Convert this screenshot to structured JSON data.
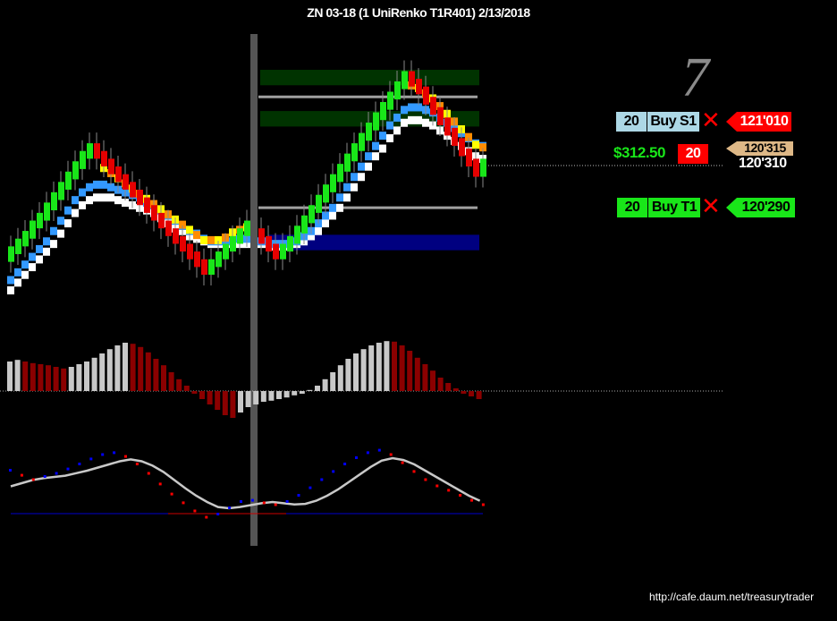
{
  "header": {
    "title": "ZN 03-18 (1 UniRenko T1R401)  2/13/2018"
  },
  "annotation": {
    "number": "7"
  },
  "trade_panel": {
    "stop": {
      "qty": "20",
      "label": "Buy S1",
      "price": "121'010"
    },
    "position": {
      "pnl": "$312.50",
      "qty": "20",
      "entry_price": "120'315",
      "current_price": "120'310"
    },
    "target": {
      "qty": "20",
      "label": "Buy T1",
      "price": "120'290"
    }
  },
  "footer": {
    "url": "http://cafe.daum.net/treasurytrader"
  },
  "colors": {
    "up_bar": "#19e619",
    "down_bar": "#e60000",
    "zone_green": "#003300",
    "zone_blue": "#000080",
    "macd_up": "#c8c8c8",
    "macd_down": "#8b0000",
    "stoch_line": "#c8c8c8",
    "dots_up": "#0000ff",
    "dots_down": "#ff0000"
  },
  "chart_data": [
    {
      "type": "candlestick",
      "closes": [
        0.5,
        0.53,
        0.56,
        0.6,
        0.63,
        0.67,
        0.71,
        0.75,
        0.79,
        0.83,
        0.87,
        0.9,
        0.87,
        0.84,
        0.81,
        0.78,
        0.75,
        0.72,
        0.69,
        0.66,
        0.63,
        0.6,
        0.57,
        0.54,
        0.51,
        0.48,
        0.45,
        0.42,
        0.45,
        0.48,
        0.51,
        0.54,
        0.57,
        0.6,
        0.57,
        0.54,
        0.51,
        0.48,
        0.51,
        0.54,
        0.58,
        0.62,
        0.66,
        0.7,
        0.74,
        0.78,
        0.82,
        0.86,
        0.9,
        0.94,
        0.98,
        1.02,
        1.06,
        1.1,
        1.14,
        1.18,
        1.15,
        1.12,
        1.08,
        1.04,
        1.0,
        0.96,
        0.92,
        0.88,
        0.84,
        0.8,
        0.84
      ],
      "ma_fast": [
        0.45,
        0.48,
        0.51,
        0.54,
        0.57,
        0.6,
        0.64,
        0.68,
        0.72,
        0.76,
        0.8,
        0.82,
        0.81,
        0.8,
        0.78,
        0.76,
        0.74,
        0.72,
        0.7,
        0.68,
        0.66,
        0.64,
        0.62,
        0.6,
        0.58,
        0.56,
        0.54,
        0.52,
        0.52,
        0.52,
        0.53,
        0.55,
        0.56,
        0.57,
        0.56,
        0.55,
        0.54,
        0.53,
        0.53,
        0.54,
        0.56,
        0.59,
        0.62,
        0.66,
        0.7,
        0.74,
        0.78,
        0.82,
        0.86,
        0.9,
        0.94,
        0.98,
        1.02,
        1.06,
        1.09,
        1.12,
        1.12,
        1.11,
        1.09,
        1.07,
        1.04,
        1.01,
        0.98,
        0.95,
        0.92,
        0.89,
        0.88
      ],
      "ma_slow": [
        0.4,
        0.43,
        0.46,
        0.49,
        0.52,
        0.55,
        0.59,
        0.63,
        0.67,
        0.71,
        0.74,
        0.76,
        0.77,
        0.77,
        0.76,
        0.75,
        0.74,
        0.73,
        0.72,
        0.7,
        0.69,
        0.67,
        0.65,
        0.63,
        0.61,
        0.59,
        0.58,
        0.56,
        0.55,
        0.55,
        0.55,
        0.55,
        0.56,
        0.56,
        0.56,
        0.55,
        0.55,
        0.54,
        0.54,
        0.54,
        0.55,
        0.57,
        0.59,
        0.62,
        0.65,
        0.68,
        0.72,
        0.76,
        0.8,
        0.84,
        0.88,
        0.92,
        0.96,
        1.0,
        1.03,
        1.06,
        1.07,
        1.07,
        1.06,
        1.05,
        1.03,
        1.01,
        0.99,
        0.97,
        0.95,
        0.93,
        0.92
      ],
      "ma_white": [
        0.36,
        0.39,
        0.42,
        0.45,
        0.48,
        0.51,
        0.54,
        0.58,
        0.62,
        0.66,
        0.69,
        0.71,
        0.72,
        0.72,
        0.72,
        0.71,
        0.7,
        0.69,
        0.68,
        0.67,
        0.66,
        0.64,
        0.62,
        0.6,
        0.59,
        0.57,
        0.56,
        0.55,
        0.54,
        0.54,
        0.54,
        0.54,
        0.54,
        0.54,
        0.54,
        0.54,
        0.54,
        0.53,
        0.53,
        0.53,
        0.54,
        0.55,
        0.57,
        0.59,
        0.62,
        0.65,
        0.68,
        0.72,
        0.76,
        0.8,
        0.84,
        0.88,
        0.91,
        0.95,
        0.98,
        1.01,
        1.02,
        1.02,
        1.01,
        1.0,
        0.98,
        0.96,
        0.94,
        0.92,
        0.9,
        0.88,
        0.87
      ],
      "zones": [
        {
          "from": 1.2,
          "to": 1.14,
          "color": "green"
        },
        {
          "from": 1.04,
          "to": 0.98,
          "color": "green"
        },
        {
          "from": 0.56,
          "to": 0.5,
          "color": "blue"
        }
      ],
      "levels": [
        1.095,
        0.665
      ]
    },
    {
      "type": "histogram",
      "values": [
        0.55,
        0.58,
        0.55,
        0.52,
        0.5,
        0.48,
        0.45,
        0.42,
        0.45,
        0.5,
        0.55,
        0.62,
        0.7,
        0.78,
        0.85,
        0.9,
        0.88,
        0.82,
        0.72,
        0.6,
        0.48,
        0.35,
        0.22,
        0.1,
        -0.05,
        -0.15,
        -0.25,
        -0.35,
        -0.45,
        -0.5,
        -0.4,
        -0.3,
        -0.25,
        -0.2,
        -0.18,
        -0.15,
        -0.12,
        -0.08,
        -0.05,
        0.02,
        0.1,
        0.22,
        0.35,
        0.48,
        0.6,
        0.7,
        0.78,
        0.85,
        0.9,
        0.93,
        0.92,
        0.85,
        0.75,
        0.62,
        0.5,
        0.38,
        0.25,
        0.15,
        0.05,
        -0.05,
        -0.1,
        -0.15
      ]
    },
    {
      "type": "line",
      "oscillator": [
        0.45,
        0.5,
        0.55,
        0.58,
        0.6,
        0.62,
        0.66,
        0.7,
        0.75,
        0.8,
        0.85,
        0.88,
        0.85,
        0.78,
        0.68,
        0.55,
        0.42,
        0.3,
        0.2,
        0.12,
        0.1,
        0.12,
        0.15,
        0.18,
        0.2,
        0.18,
        0.16,
        0.17,
        0.22,
        0.3,
        0.4,
        0.52,
        0.64,
        0.76,
        0.86,
        0.9,
        0.87,
        0.8,
        0.7,
        0.6,
        0.5,
        0.4,
        0.3,
        0.22
      ],
      "dots": [
        0.7,
        0.62,
        0.55,
        0.6,
        0.65,
        0.72,
        0.8,
        0.88,
        0.95,
        0.98,
        0.92,
        0.8,
        0.65,
        0.48,
        0.32,
        0.18,
        0.05,
        -0.05,
        0.0,
        0.1,
        0.2,
        0.22,
        0.18,
        0.15,
        0.2,
        0.3,
        0.42,
        0.55,
        0.68,
        0.8,
        0.9,
        0.98,
        1.02,
        0.95,
        0.82,
        0.68,
        0.55,
        0.45,
        0.38,
        0.3,
        0.22,
        0.15
      ]
    }
  ]
}
